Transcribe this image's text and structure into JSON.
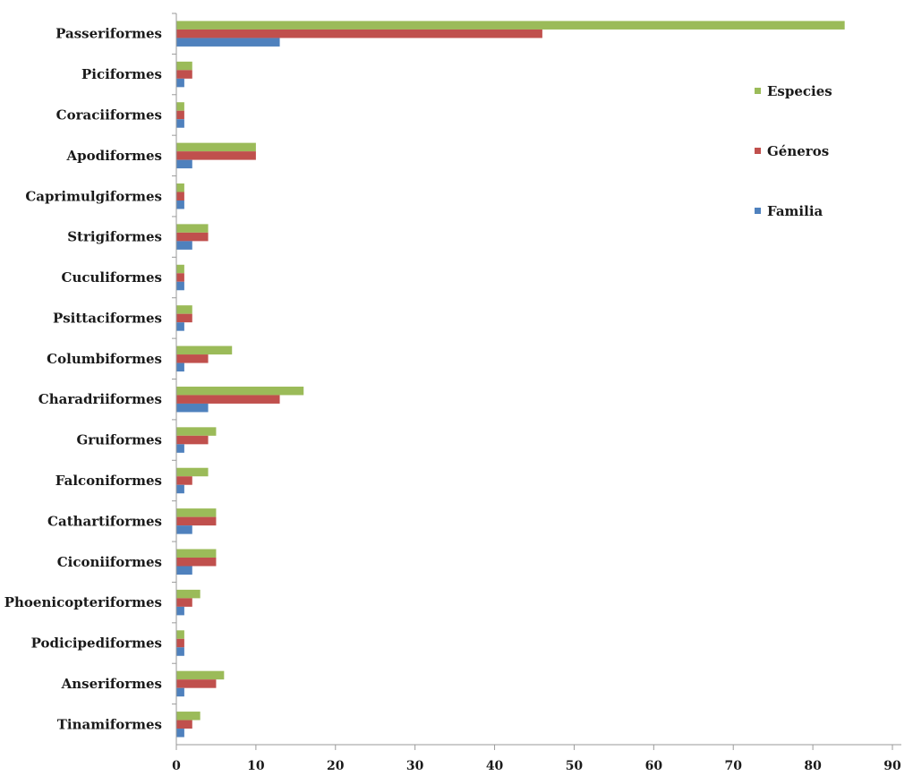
{
  "chart_data": {
    "type": "bar",
    "orientation": "horizontal",
    "categories": [
      "Passeriformes",
      "Piciformes",
      "Coraciiformes",
      "Apodiformes",
      "Caprimulgiformes",
      "Strigiformes",
      "Cuculiformes",
      "Psittaciformes",
      "Columbiformes",
      "Charadriiformes",
      "Gruiformes",
      "Falconiformes",
      "Cathartiformes",
      "Ciconiiformes",
      "Phoenicopteriformes",
      "Podicipediformes",
      "Anseriformes",
      "Tinamiformes"
    ],
    "series": [
      {
        "name": "Especies",
        "color": "#9bbb59",
        "values": [
          84,
          2,
          1,
          10,
          1,
          4,
          1,
          2,
          7,
          16,
          5,
          4,
          5,
          5,
          3,
          1,
          6,
          3
        ]
      },
      {
        "name": "Géneros",
        "color": "#c0504d",
        "values": [
          46,
          2,
          1,
          10,
          1,
          4,
          1,
          2,
          4,
          13,
          4,
          2,
          5,
          5,
          2,
          1,
          5,
          2
        ]
      },
      {
        "name": "Familia",
        "color": "#4f81bd",
        "values": [
          13,
          1,
          1,
          2,
          1,
          2,
          1,
          1,
          1,
          4,
          1,
          1,
          2,
          2,
          1,
          1,
          1,
          1
        ]
      }
    ],
    "xlim": [
      0,
      90
    ],
    "xticks": [
      0,
      10,
      20,
      30,
      40,
      50,
      60,
      70,
      80,
      90
    ],
    "title": "",
    "xlabel": "",
    "ylabel": "",
    "grid": false,
    "legend_position": "right"
  }
}
